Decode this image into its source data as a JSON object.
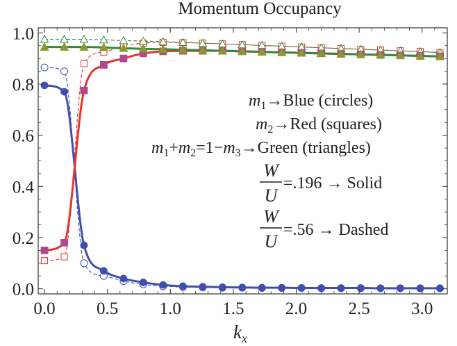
{
  "chart_data": {
    "type": "line",
    "title": "Momentum Occupancy",
    "xlabel_main": "k",
    "xlabel_sub": "x",
    "ylabel": "",
    "xlim": [
      -0.05,
      3.2
    ],
    "ylim": [
      -0.02,
      1.02
    ],
    "xticks": [
      0.0,
      0.5,
      1.0,
      1.5,
      2.0,
      2.5,
      3.0
    ],
    "xtick_labels": [
      "0.0",
      "0.5",
      "1.0",
      "1.5",
      "2.0",
      "2.5",
      "3.0"
    ],
    "yticks": [
      0.0,
      0.2,
      0.4,
      0.6,
      0.8,
      1.0
    ],
    "ytick_labels": [
      "0.0",
      "0.2",
      "0.4",
      "0.6",
      "0.8",
      "1.0"
    ],
    "grid": false,
    "series": [
      {
        "key": "m1_solid",
        "color": "#3f4fb0",
        "marker": "circle",
        "filled": true,
        "dashed": false,
        "x": [
          0.0,
          0.157,
          0.314,
          0.471,
          0.628,
          0.785,
          0.942,
          1.1,
          1.257,
          1.414,
          1.571,
          1.728,
          1.885,
          2.042,
          2.199,
          2.356,
          2.513,
          2.67,
          2.827,
          2.985,
          3.142
        ],
        "y": [
          0.795,
          0.77,
          0.17,
          0.07,
          0.04,
          0.025,
          0.015,
          0.01,
          0.008,
          0.006,
          0.005,
          0.004,
          0.004,
          0.003,
          0.003,
          0.003,
          0.003,
          0.002,
          0.002,
          0.002,
          0.002
        ]
      },
      {
        "key": "m2_solid",
        "color": "#e8332a",
        "marker": "square",
        "filled": true,
        "dashed": false,
        "x": [
          0.0,
          0.157,
          0.314,
          0.471,
          0.628,
          0.785,
          0.942,
          1.1,
          1.257,
          1.414,
          1.571,
          1.728,
          1.885,
          2.042,
          2.199,
          2.356,
          2.513,
          2.67,
          2.827,
          2.985,
          3.142
        ],
        "y": [
          0.15,
          0.18,
          0.775,
          0.875,
          0.9,
          0.92,
          0.928,
          0.93,
          0.93,
          0.93,
          0.928,
          0.926,
          0.924,
          0.922,
          0.92,
          0.918,
          0.916,
          0.914,
          0.912,
          0.91,
          0.908
        ]
      },
      {
        "key": "m3_solid",
        "color": "#2e8b3a",
        "marker": "triangle",
        "filled": true,
        "dashed": false,
        "x": [
          0.0,
          0.157,
          0.314,
          0.471,
          0.628,
          0.785,
          0.942,
          1.1,
          1.257,
          1.414,
          1.571,
          1.728,
          1.885,
          2.042,
          2.199,
          2.356,
          2.513,
          2.67,
          2.827,
          2.985,
          3.142
        ],
        "y": [
          0.945,
          0.945,
          0.945,
          0.943,
          0.94,
          0.938,
          0.936,
          0.934,
          0.932,
          0.93,
          0.928,
          0.926,
          0.924,
          0.922,
          0.92,
          0.918,
          0.916,
          0.914,
          0.912,
          0.91,
          0.908
        ]
      },
      {
        "key": "m1_dashed",
        "color": "#3f4fb0",
        "marker": "circle",
        "filled": false,
        "dashed": true,
        "x": [
          0.0,
          0.157,
          0.314,
          0.471,
          0.628,
          0.785,
          0.942,
          1.1,
          1.257,
          1.414,
          1.571,
          1.728,
          1.885,
          2.042,
          2.199,
          2.356,
          2.513,
          2.67,
          2.827,
          2.985,
          3.142
        ],
        "y": [
          0.865,
          0.85,
          0.1,
          0.05,
          0.03,
          0.017,
          0.01,
          0.007,
          0.005,
          0.004,
          0.004,
          0.003,
          0.003,
          0.003,
          0.002,
          0.002,
          0.002,
          0.002,
          0.002,
          0.002,
          0.002
        ]
      },
      {
        "key": "m2_dashed",
        "color": "#e8332a",
        "marker": "square",
        "filled": false,
        "dashed": true,
        "x": [
          0.0,
          0.157,
          0.314,
          0.471,
          0.628,
          0.785,
          0.942,
          1.1,
          1.257,
          1.414,
          1.571,
          1.728,
          1.885,
          2.042,
          2.199,
          2.356,
          2.513,
          2.67,
          2.827,
          2.985,
          3.142
        ],
        "y": [
          0.11,
          0.125,
          0.88,
          0.925,
          0.95,
          0.96,
          0.963,
          0.962,
          0.96,
          0.957,
          0.954,
          0.951,
          0.948,
          0.945,
          0.942,
          0.939,
          0.936,
          0.933,
          0.93,
          0.927,
          0.923
        ]
      },
      {
        "key": "m3_dashed",
        "color": "#2e8b3a",
        "marker": "triangle",
        "filled": false,
        "dashed": true,
        "x": [
          0.0,
          0.157,
          0.314,
          0.471,
          0.628,
          0.785,
          0.942,
          1.1,
          1.257,
          1.414,
          1.571,
          1.728,
          1.885,
          2.042,
          2.199,
          2.356,
          2.513,
          2.67,
          2.827,
          2.985,
          3.142
        ],
        "y": [
          0.975,
          0.975,
          0.975,
          0.973,
          0.97,
          0.968,
          0.966,
          0.963,
          0.96,
          0.957,
          0.954,
          0.951,
          0.948,
          0.945,
          0.942,
          0.939,
          0.936,
          0.933,
          0.93,
          0.927,
          0.923
        ]
      }
    ],
    "legend": {
      "line1": {
        "var": "m",
        "sub": "1",
        "rest": "→Blue (circles)"
      },
      "line2": {
        "var": "m",
        "sub": "2",
        "rest": "→Red (squares)"
      },
      "line3": {
        "a": "m",
        "asub": "1",
        "plus": "+",
        "b": "m",
        "bsub": "2",
        "mid": "=1−",
        "c": "m",
        "csub": "3",
        "rest": "→Green (triangles)"
      },
      "frac1": {
        "num": "W",
        "den": "U",
        "rest": "=.196 → Solid"
      },
      "frac2": {
        "num": "W",
        "den": "U",
        "rest": "=.56 → Dashed"
      }
    }
  }
}
